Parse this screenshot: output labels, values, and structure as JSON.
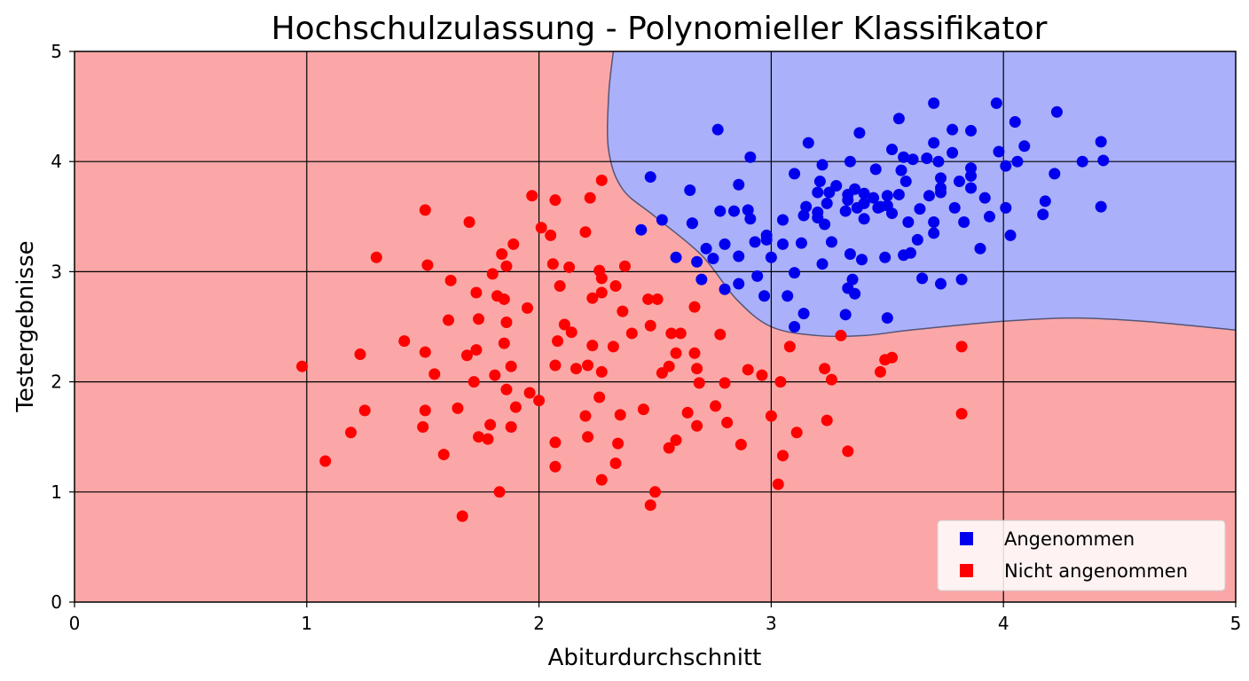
{
  "chart_data": {
    "type": "scatter",
    "title": "Hochschulzulassung - Polynomieller Klassifikator",
    "xlabel": "Abiturdurchschnitt",
    "ylabel": "Testergebnisse",
    "xlim": [
      0,
      5
    ],
    "ylim": [
      0,
      5
    ],
    "xticks": [
      "0",
      "1",
      "2",
      "3",
      "4",
      "5"
    ],
    "yticks": [
      "0",
      "1",
      "2",
      "3",
      "4",
      "5"
    ],
    "grid": true,
    "legend_position": "bottom-right",
    "regions": [
      {
        "name": "Angenommen",
        "color": "#aab0fa"
      },
      {
        "name": "Nicht angenommen",
        "color": "#fba7a7"
      }
    ],
    "decision_boundary": [
      [
        2.32,
        5.0
      ],
      [
        2.3,
        4.6
      ],
      [
        2.3,
        4.1
      ],
      [
        2.36,
        3.75
      ],
      [
        2.5,
        3.5
      ],
      [
        2.7,
        3.15
      ],
      [
        2.85,
        2.75
      ],
      [
        3.0,
        2.5
      ],
      [
        3.2,
        2.42
      ],
      [
        3.4,
        2.42
      ],
      [
        3.6,
        2.47
      ],
      [
        4.0,
        2.55
      ],
      [
        4.3,
        2.58
      ],
      [
        4.6,
        2.55
      ],
      [
        5.0,
        2.47
      ]
    ],
    "series": [
      {
        "name": "Angenommen",
        "color": "#0000ee",
        "points": [
          [
            3.7,
            4.53
          ],
          [
            3.97,
            4.53
          ],
          [
            4.23,
            4.45
          ],
          [
            3.55,
            4.39
          ],
          [
            4.05,
            4.36
          ],
          [
            2.77,
            4.29
          ],
          [
            3.78,
            4.29
          ],
          [
            3.86,
            4.28
          ],
          [
            3.38,
            4.26
          ],
          [
            4.42,
            4.18
          ],
          [
            3.16,
            4.17
          ],
          [
            3.7,
            4.17
          ],
          [
            4.09,
            4.14
          ],
          [
            3.52,
            4.11
          ],
          [
            3.98,
            4.09
          ],
          [
            3.78,
            4.08
          ],
          [
            2.91,
            4.04
          ],
          [
            3.57,
            4.04
          ],
          [
            3.67,
            4.03
          ],
          [
            3.61,
            4.02
          ],
          [
            4.34,
            4.0
          ],
          [
            4.43,
            4.01
          ],
          [
            3.72,
            4.0
          ],
          [
            4.06,
            4.0
          ],
          [
            3.34,
            4.0
          ],
          [
            3.22,
            3.97
          ],
          [
            4.01,
            3.96
          ],
          [
            3.86,
            3.94
          ],
          [
            3.45,
            3.93
          ],
          [
            3.56,
            3.92
          ],
          [
            3.1,
            3.89
          ],
          [
            4.22,
            3.89
          ],
          [
            2.48,
            3.86
          ],
          [
            3.73,
            3.85
          ],
          [
            3.86,
            3.87
          ],
          [
            3.21,
            3.82
          ],
          [
            3.58,
            3.82
          ],
          [
            3.81,
            3.82
          ],
          [
            2.86,
            3.79
          ],
          [
            3.28,
            3.78
          ],
          [
            3.36,
            3.75
          ],
          [
            3.2,
            3.72
          ],
          [
            3.25,
            3.72
          ],
          [
            3.4,
            3.71
          ],
          [
            3.33,
            3.7
          ],
          [
            3.73,
            3.76
          ],
          [
            3.86,
            3.76
          ],
          [
            3.73,
            3.72
          ],
          [
            3.55,
            3.7
          ],
          [
            2.65,
            3.74
          ],
          [
            3.68,
            3.69
          ],
          [
            3.5,
            3.69
          ],
          [
            3.44,
            3.67
          ],
          [
            3.33,
            3.65
          ],
          [
            3.92,
            3.67
          ],
          [
            3.15,
            3.59
          ],
          [
            3.24,
            3.62
          ],
          [
            3.4,
            3.62
          ],
          [
            3.47,
            3.59
          ],
          [
            3.37,
            3.58
          ],
          [
            4.18,
            3.64
          ],
          [
            2.78,
            3.55
          ],
          [
            2.9,
            3.56
          ],
          [
            3.32,
            3.55
          ],
          [
            3.64,
            3.57
          ],
          [
            3.79,
            3.58
          ],
          [
            3.46,
            3.58
          ],
          [
            3.5,
            3.6
          ],
          [
            4.42,
            3.59
          ],
          [
            4.01,
            3.58
          ],
          [
            2.84,
            3.55
          ],
          [
            3.2,
            3.54
          ],
          [
            3.52,
            3.53
          ],
          [
            4.17,
            3.52
          ],
          [
            3.14,
            3.51
          ],
          [
            3.4,
            3.48
          ],
          [
            3.2,
            3.49
          ],
          [
            3.59,
            3.45
          ],
          [
            3.7,
            3.45
          ],
          [
            3.05,
            3.47
          ],
          [
            2.53,
            3.47
          ],
          [
            2.66,
            3.44
          ],
          [
            2.91,
            3.48
          ],
          [
            3.83,
            3.45
          ],
          [
            3.94,
            3.5
          ],
          [
            3.23,
            3.43
          ],
          [
            2.98,
            3.33
          ],
          [
            2.66,
            3.44
          ],
          [
            2.44,
            3.38
          ],
          [
            2.93,
            3.27
          ],
          [
            2.98,
            3.29
          ],
          [
            3.05,
            3.25
          ],
          [
            2.72,
            3.21
          ],
          [
            3.13,
            3.26
          ],
          [
            2.8,
            3.25
          ],
          [
            3.7,
            3.35
          ],
          [
            3.63,
            3.29
          ],
          [
            2.86,
            3.14
          ],
          [
            3.0,
            3.13
          ],
          [
            4.03,
            3.33
          ],
          [
            3.26,
            3.27
          ],
          [
            3.34,
            3.16
          ],
          [
            3.22,
            3.07
          ],
          [
            3.39,
            3.11
          ],
          [
            2.59,
            3.13
          ],
          [
            2.68,
            3.09
          ],
          [
            3.49,
            3.13
          ],
          [
            3.57,
            3.15
          ],
          [
            3.6,
            3.17
          ],
          [
            3.9,
            3.21
          ],
          [
            2.75,
            3.12
          ],
          [
            3.1,
            2.99
          ],
          [
            2.7,
            2.93
          ],
          [
            2.94,
            2.96
          ],
          [
            3.35,
            2.93
          ],
          [
            2.86,
            2.89
          ],
          [
            2.8,
            2.84
          ],
          [
            3.65,
            2.94
          ],
          [
            3.73,
            2.89
          ],
          [
            3.82,
            2.93
          ],
          [
            3.33,
            2.85
          ],
          [
            3.36,
            2.8
          ],
          [
            2.97,
            2.78
          ],
          [
            3.07,
            2.78
          ],
          [
            3.32,
            2.61
          ],
          [
            3.14,
            2.62
          ],
          [
            3.5,
            2.58
          ],
          [
            3.1,
            2.5
          ]
        ]
      },
      {
        "name": "Nicht angenommen",
        "color": "#ff0000",
        "points": [
          [
            2.27,
            3.83
          ],
          [
            1.97,
            3.69
          ],
          [
            2.07,
            3.65
          ],
          [
            2.22,
            3.67
          ],
          [
            1.51,
            3.56
          ],
          [
            1.7,
            3.45
          ],
          [
            2.01,
            3.4
          ],
          [
            2.05,
            3.33
          ],
          [
            2.2,
            3.36
          ],
          [
            1.89,
            3.25
          ],
          [
            1.84,
            3.16
          ],
          [
            1.3,
            3.13
          ],
          [
            1.52,
            3.06
          ],
          [
            1.86,
            3.05
          ],
          [
            2.06,
            3.07
          ],
          [
            2.26,
            3.01
          ],
          [
            2.37,
            3.05
          ],
          [
            2.13,
            3.04
          ],
          [
            1.8,
            2.98
          ],
          [
            2.27,
            2.94
          ],
          [
            1.62,
            2.92
          ],
          [
            2.09,
            2.87
          ],
          [
            2.33,
            2.87
          ],
          [
            1.73,
            2.81
          ],
          [
            2.27,
            2.81
          ],
          [
            1.82,
            2.78
          ],
          [
            1.85,
            2.75
          ],
          [
            2.23,
            2.76
          ],
          [
            2.47,
            2.75
          ],
          [
            2.51,
            2.75
          ],
          [
            1.95,
            2.67
          ],
          [
            2.67,
            2.68
          ],
          [
            1.61,
            2.56
          ],
          [
            1.74,
            2.57
          ],
          [
            1.86,
            2.54
          ],
          [
            2.11,
            2.52
          ],
          [
            2.14,
            2.45
          ],
          [
            2.36,
            2.64
          ],
          [
            2.48,
            2.51
          ],
          [
            2.4,
            2.44
          ],
          [
            2.57,
            2.44
          ],
          [
            2.61,
            2.44
          ],
          [
            2.78,
            2.43
          ],
          [
            1.42,
            2.37
          ],
          [
            1.85,
            2.35
          ],
          [
            2.08,
            2.37
          ],
          [
            2.23,
            2.33
          ],
          [
            2.32,
            2.32
          ],
          [
            3.3,
            2.42
          ],
          [
            3.08,
            2.32
          ],
          [
            1.69,
            2.24
          ],
          [
            1.73,
            2.29
          ],
          [
            1.51,
            2.27
          ],
          [
            1.23,
            2.25
          ],
          [
            2.59,
            2.26
          ],
          [
            2.67,
            2.26
          ],
          [
            3.52,
            2.22
          ],
          [
            3.49,
            2.2
          ],
          [
            3.82,
            2.32
          ],
          [
            0.98,
            2.14
          ],
          [
            1.88,
            2.14
          ],
          [
            2.07,
            2.15
          ],
          [
            2.16,
            2.12
          ],
          [
            2.21,
            2.15
          ],
          [
            2.56,
            2.14
          ],
          [
            2.53,
            2.08
          ],
          [
            2.68,
            2.12
          ],
          [
            2.9,
            2.11
          ],
          [
            3.23,
            2.12
          ],
          [
            3.47,
            2.09
          ],
          [
            1.55,
            2.07
          ],
          [
            1.81,
            2.06
          ],
          [
            2.27,
            2.09
          ],
          [
            2.96,
            2.06
          ],
          [
            1.72,
            2.0
          ],
          [
            2.69,
            1.99
          ],
          [
            2.8,
            1.99
          ],
          [
            3.04,
            2.0
          ],
          [
            3.26,
            2.02
          ],
          [
            1.86,
            1.93
          ],
          [
            1.96,
            1.9
          ],
          [
            2.0,
            1.83
          ],
          [
            2.26,
            1.86
          ],
          [
            1.9,
            1.77
          ],
          [
            1.51,
            1.74
          ],
          [
            1.25,
            1.74
          ],
          [
            1.65,
            1.76
          ],
          [
            2.45,
            1.75
          ],
          [
            2.76,
            1.78
          ],
          [
            2.64,
            1.72
          ],
          [
            2.35,
            1.7
          ],
          [
            2.2,
            1.69
          ],
          [
            3.0,
            1.69
          ],
          [
            3.82,
            1.71
          ],
          [
            2.81,
            1.63
          ],
          [
            3.24,
            1.65
          ],
          [
            1.5,
            1.59
          ],
          [
            1.79,
            1.61
          ],
          [
            1.88,
            1.59
          ],
          [
            2.68,
            1.6
          ],
          [
            1.19,
            1.54
          ],
          [
            1.74,
            1.5
          ],
          [
            1.78,
            1.48
          ],
          [
            2.21,
            1.5
          ],
          [
            2.07,
            1.45
          ],
          [
            2.34,
            1.44
          ],
          [
            2.59,
            1.47
          ],
          [
            2.56,
            1.4
          ],
          [
            2.87,
            1.43
          ],
          [
            3.11,
            1.54
          ],
          [
            3.33,
            1.37
          ],
          [
            1.59,
            1.34
          ],
          [
            1.08,
            1.28
          ],
          [
            2.33,
            1.26
          ],
          [
            2.07,
            1.23
          ],
          [
            3.05,
            1.33
          ],
          [
            2.27,
            1.11
          ],
          [
            3.03,
            1.07
          ],
          [
            1.83,
            1.0
          ],
          [
            2.5,
            1.0
          ],
          [
            2.48,
            0.88
          ],
          [
            1.67,
            0.78
          ]
        ]
      }
    ]
  }
}
